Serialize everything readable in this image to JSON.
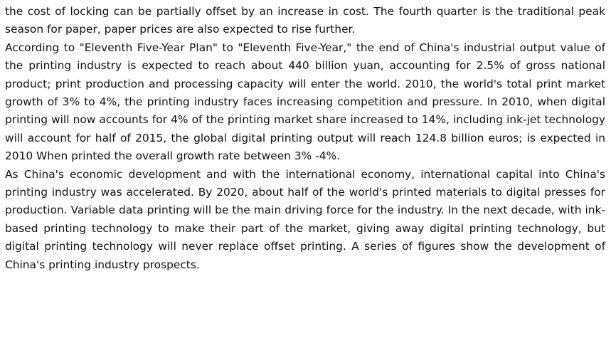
{
  "document": {
    "paragraphs": [
      "the cost of locking can be partially offset by an increase in cost. The fourth quarter is the traditional peak season for paper, paper prices are also expected to rise further.",
      "According to \"Eleventh Five-Year Plan\" to \"Eleventh Five-Year,\" the end of China's industrial output value of the printing industry is expected to reach about 440 billion yuan, accounting for 2.5% of gross national product; print production and processing capacity will enter the world. 2010, the world's total print market growth of 3% to 4%, the printing industry faces increasing competition and pressure. In 2010, when digital printing will now accounts for 4% of the printing market share increased to 14%, including ink-jet technology will account for half of 2015, the global digital printing output will reach 124.8 billion euros; is expected in 2010 When printed the overall growth rate between 3% -4%.",
      "As China's economic development and with the international economy, international capital into China's printing industry was accelerated. By 2020, about half of the world's printed materials to digital presses for production. Variable data printing will be the main driving force for the industry. In the next decade, with ink-based printing technology to make their part of the market, giving away digital printing technology, but digital printing technology will never replace offset printing. A series of figures show the development of China's printing industry prospects."
    ]
  }
}
